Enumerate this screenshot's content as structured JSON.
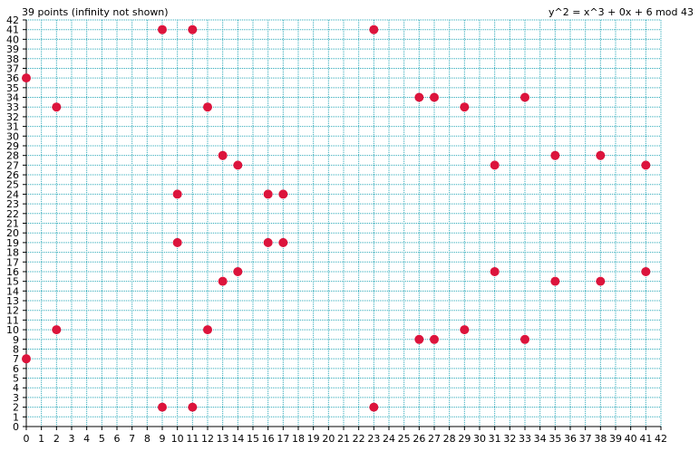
{
  "chart_data": {
    "type": "scatter",
    "title": "y^2 = x^3 + 0x + 6 mod 43",
    "subtitle": "39 points (infinity not shown)",
    "xlabel": "",
    "ylabel": "",
    "xlim": [
      0,
      42
    ],
    "ylim": [
      0,
      42
    ],
    "grid": true,
    "colors": {
      "point": "#dc143c",
      "grid": "#2aa8b8",
      "axis": "#000000"
    },
    "points": [
      [
        0,
        7
      ],
      [
        0,
        36
      ],
      [
        2,
        10
      ],
      [
        2,
        33
      ],
      [
        9,
        2
      ],
      [
        9,
        41
      ],
      [
        10,
        19
      ],
      [
        10,
        24
      ],
      [
        11,
        2
      ],
      [
        11,
        41
      ],
      [
        12,
        10
      ],
      [
        12,
        33
      ],
      [
        13,
        15
      ],
      [
        13,
        28
      ],
      [
        14,
        16
      ],
      [
        14,
        27
      ],
      [
        16,
        19
      ],
      [
        16,
        24
      ],
      [
        17,
        19
      ],
      [
        17,
        24
      ],
      [
        23,
        2
      ],
      [
        23,
        41
      ],
      [
        26,
        9
      ],
      [
        26,
        34
      ],
      [
        27,
        9
      ],
      [
        27,
        34
      ],
      [
        29,
        10
      ],
      [
        29,
        33
      ],
      [
        31,
        16
      ],
      [
        31,
        27
      ],
      [
        33,
        9
      ],
      [
        33,
        34
      ],
      [
        35,
        15
      ],
      [
        35,
        28
      ],
      [
        38,
        15
      ],
      [
        38,
        28
      ],
      [
        41,
        16
      ],
      [
        41,
        27
      ]
    ]
  }
}
